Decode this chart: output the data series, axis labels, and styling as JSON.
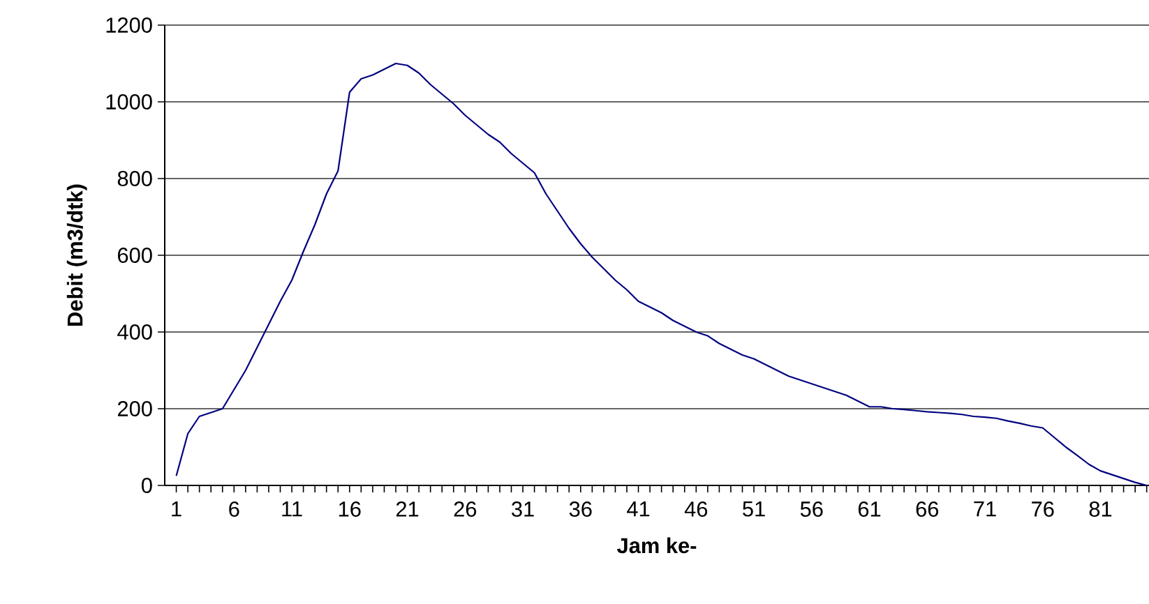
{
  "chart_data": {
    "type": "line",
    "xlabel": "Jam ke-",
    "ylabel": "Debit (m3/dtk)",
    "categories": [
      "1",
      null,
      null,
      null,
      null,
      "6",
      null,
      null,
      null,
      null,
      "11",
      null,
      null,
      null,
      null,
      "16",
      null,
      null,
      null,
      null,
      "21",
      null,
      null,
      null,
      null,
      "26",
      null,
      null,
      null,
      null,
      "31",
      null,
      null,
      null,
      null,
      "36",
      null,
      null,
      null,
      null,
      "41",
      null,
      null,
      null,
      null,
      "46",
      null,
      null,
      null,
      null,
      "51",
      null,
      null,
      null,
      null,
      "56",
      null,
      null,
      null,
      null,
      "61",
      null,
      null,
      null,
      null,
      "66",
      null,
      null,
      null,
      null,
      "71",
      null,
      null,
      null,
      null,
      "76",
      null,
      null,
      null,
      null,
      "81",
      null,
      null,
      null,
      null
    ],
    "series": [
      {
        "color": "#000080",
        "values": [
          25,
          135,
          180,
          190,
          200,
          250,
          300,
          360,
          420,
          480,
          535,
          610,
          680,
          760,
          820,
          1025,
          1060,
          1070,
          1085,
          1100,
          1095,
          1075,
          1045,
          1020,
          995,
          965,
          940,
          915,
          895,
          865,
          840,
          815,
          760,
          715,
          670,
          630,
          595,
          565,
          535,
          510,
          480,
          465,
          450,
          430,
          415,
          400,
          390,
          370,
          355,
          340,
          330,
          315,
          300,
          285,
          275,
          265,
          255,
          245,
          235,
          220,
          205,
          205,
          200,
          198,
          195,
          192,
          190,
          188,
          185,
          180,
          178,
          175,
          168,
          162,
          155,
          150,
          125,
          100,
          78,
          55,
          38,
          28,
          18,
          8,
          0
        ]
      }
    ],
    "ylim": [
      0,
      1200
    ],
    "yticks": [
      0,
      200,
      400,
      600,
      800,
      1000,
      1200
    ],
    "grid": "y"
  }
}
